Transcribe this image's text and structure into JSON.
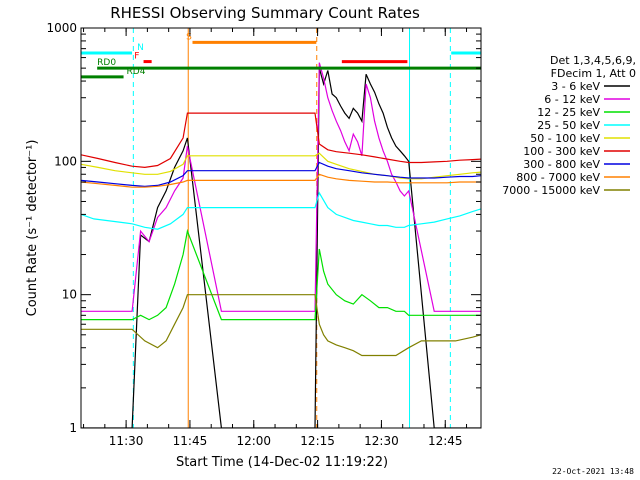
{
  "chart_data": {
    "type": "line",
    "title": "RHESSI Observing Summary Count Rates",
    "xlabel": "Start Time (14-Dec-02 11:19:22)",
    "ylabel": "Count Rate (s⁻¹ detector⁻¹)",
    "y_scale": "log",
    "ylim": [
      1,
      1000
    ],
    "xlim_minutes": [
      0,
      94
    ],
    "x_ticks": [
      {
        "label": "11:30",
        "minute": 10.6
      },
      {
        "label": "11:45",
        "minute": 25.6
      },
      {
        "label": "12:00",
        "minute": 40.6
      },
      {
        "label": "12:15",
        "minute": 55.6
      },
      {
        "label": "12:30",
        "minute": 70.6
      },
      {
        "label": "12:45",
        "minute": 85.6
      }
    ],
    "y_ticks": [
      {
        "label": "1",
        "value": 1
      },
      {
        "label": "10",
        "value": 10
      },
      {
        "label": "100",
        "value": 100
      },
      {
        "label": "1000",
        "value": 1000
      }
    ],
    "legend_header": [
      "Det 1,3,4,5,6,9,",
      "FDecim 1, Att 0"
    ],
    "legend_position": "right",
    "grid": false,
    "series": [
      {
        "name": "3 - 6 keV",
        "color": "#000000",
        "x": [
          0,
          12,
          14,
          16,
          18,
          20,
          22,
          24,
          25,
          33,
          55,
          56,
          57,
          58,
          59,
          60,
          61,
          62,
          63,
          64,
          65,
          66,
          67,
          68,
          69,
          70,
          71,
          72,
          73,
          74,
          75,
          76,
          77,
          83,
          90,
          94
        ],
        "y": [
          1,
          1,
          28,
          25,
          45,
          60,
          90,
          120,
          150,
          1,
          1,
          500,
          380,
          480,
          320,
          300,
          260,
          230,
          210,
          250,
          230,
          200,
          450,
          380,
          330,
          270,
          230,
          180,
          150,
          130,
          120,
          110,
          100,
          1,
          1,
          1
        ]
      },
      {
        "name": "6 - 12 keV",
        "color": "#e000e0",
        "x": [
          0,
          12,
          14,
          16,
          18,
          20,
          22,
          24,
          25,
          33,
          55,
          56,
          57,
          58,
          59,
          60,
          61,
          62,
          63,
          64,
          65,
          66,
          67,
          68,
          69,
          70,
          71,
          72,
          73,
          74,
          75,
          76,
          77,
          83,
          90,
          94
        ],
        "y": [
          7.5,
          7.5,
          30,
          25,
          38,
          45,
          60,
          75,
          130,
          7.5,
          7.5,
          550,
          420,
          300,
          240,
          200,
          170,
          140,
          120,
          160,
          140,
          110,
          380,
          300,
          200,
          150,
          120,
          100,
          80,
          70,
          60,
          55,
          60,
          7.5,
          7.5,
          7.5
        ]
      },
      {
        "name": "12 - 25 keV",
        "color": "#00e000",
        "x": [
          0,
          12,
          14,
          16,
          18,
          20,
          22,
          24,
          25,
          33,
          55,
          56,
          57,
          58,
          60,
          62,
          64,
          66,
          68,
          70,
          72,
          74,
          76,
          77,
          83,
          90,
          94
        ],
        "y": [
          6.5,
          6.5,
          7,
          6.5,
          7,
          8,
          12,
          20,
          30,
          6.5,
          6.5,
          22,
          15,
          12,
          10,
          9,
          8.5,
          10,
          9,
          8,
          8,
          7.5,
          7.5,
          7,
          7,
          7,
          7
        ]
      },
      {
        "name": "25 - 50 keV",
        "color": "#00ffff",
        "x": [
          0,
          3,
          6,
          9,
          12,
          15,
          18,
          21,
          24,
          25,
          33,
          55,
          56,
          58,
          60,
          62,
          64,
          66,
          68,
          70,
          72,
          74,
          76,
          77,
          80,
          83,
          86,
          89,
          92,
          94
        ],
        "y": [
          40,
          37,
          36,
          35,
          34,
          32,
          31,
          34,
          40,
          45,
          45,
          45,
          58,
          45,
          40,
          38,
          36,
          35,
          34,
          33,
          33,
          32,
          32,
          33,
          34,
          35,
          37,
          39,
          42,
          44
        ]
      },
      {
        "name": "50 - 100 keV",
        "color": "#e0e000",
        "x": [
          0,
          4,
          8,
          12,
          15,
          18,
          21,
          24,
          25,
          33,
          55,
          56,
          58,
          60,
          63,
          66,
          69,
          72,
          75,
          77,
          80,
          83,
          86,
          89,
          92,
          94
        ],
        "y": [
          95,
          90,
          85,
          82,
          80,
          80,
          84,
          95,
          110,
          110,
          110,
          115,
          100,
          95,
          88,
          84,
          80,
          78,
          75,
          74,
          74,
          76,
          78,
          80,
          82,
          83
        ]
      },
      {
        "name": "100 - 300 keV",
        "color": "#e00000",
        "x": [
          0,
          4,
          8,
          12,
          15,
          18,
          21,
          24,
          25,
          33,
          55,
          56,
          58,
          60,
          63,
          66,
          69,
          72,
          75,
          77,
          80,
          83,
          86,
          89,
          92,
          94
        ],
        "y": [
          112,
          105,
          98,
          92,
          90,
          93,
          105,
          150,
          230,
          230,
          230,
          135,
          122,
          118,
          115,
          112,
          108,
          104,
          100,
          98,
          98,
          99,
          100,
          102,
          103,
          104
        ]
      },
      {
        "name": "300 - 800 keV",
        "color": "#0000e0",
        "x": [
          0,
          4,
          8,
          12,
          15,
          18,
          21,
          24,
          25,
          33,
          55,
          56,
          58,
          60,
          63,
          66,
          69,
          72,
          75,
          77,
          80,
          83,
          86,
          89,
          92,
          94
        ],
        "y": [
          72,
          70,
          68,
          66,
          65,
          66,
          70,
          78,
          85,
          85,
          85,
          98,
          92,
          88,
          85,
          82,
          80,
          78,
          76,
          75,
          75,
          75,
          76,
          77,
          77,
          78
        ]
      },
      {
        "name": "800 - 7000 keV",
        "color": "#ff8000",
        "x": [
          0,
          4,
          8,
          12,
          15,
          18,
          21,
          24,
          25,
          33,
          55,
          56,
          58,
          60,
          63,
          66,
          69,
          72,
          75,
          77,
          80,
          83,
          86,
          89,
          92,
          94
        ],
        "y": [
          70,
          68,
          66,
          64,
          64,
          65,
          67,
          70,
          72,
          72,
          72,
          80,
          76,
          74,
          72,
          71,
          70,
          70,
          69,
          69,
          69,
          69,
          69,
          70,
          70,
          70
        ]
      },
      {
        "name": "7000 - 15000 keV",
        "color": "#808000",
        "x": [
          0,
          12,
          15,
          18,
          20,
          22,
          24,
          25,
          33,
          55,
          56,
          57,
          58,
          60,
          62,
          64,
          66,
          70,
          74,
          77,
          80,
          84,
          88,
          92,
          94
        ],
        "y": [
          5.5,
          5.5,
          4.5,
          4,
          4.5,
          6,
          8,
          10,
          10,
          10,
          6,
          5,
          4.5,
          4.2,
          4,
          3.8,
          3.5,
          3.5,
          3.5,
          4,
          4.5,
          4.5,
          4.5,
          4.8,
          5
        ]
      }
    ],
    "annotations": {
      "bars": [
        {
          "label": "N",
          "color": "#00ffff",
          "y": 650,
          "x": [
            0,
            12
          ],
          "label_minute": 13.2
        },
        {
          "label": "",
          "color": "#00ffff",
          "y": 650,
          "x": [
            87,
            94
          ]
        },
        {
          "label": "F",
          "color": "#ff0000",
          "y": 560,
          "x": [
            14.7,
            16.6
          ],
          "label_minute": 12.5
        },
        {
          "label": "",
          "color": "#ff0000",
          "y": 560,
          "x": [
            61.3,
            76.7
          ]
        },
        {
          "label": "S",
          "color": "#ff8000",
          "y": 780,
          "x": [
            26.2,
            55.3
          ],
          "label_minute": 24.7
        },
        {
          "label": "RD0",
          "color": "#008000",
          "y": 500,
          "x": [
            3.8,
            94
          ],
          "label_minute": 3.8
        },
        {
          "label": "RD4",
          "color": "#008000",
          "y": 430,
          "x": [
            0,
            10
          ],
          "label_minute": 10.7
        }
      ],
      "vertical_lines": [
        {
          "minute": 0,
          "color": "#00ffff",
          "style": "dashed"
        },
        {
          "minute": 12.3,
          "color": "#00ffff",
          "style": "dashed"
        },
        {
          "minute": 25.2,
          "color": "#ff8000",
          "style": "solid"
        },
        {
          "minute": 55.4,
          "color": "#ff8000",
          "style": "dashed"
        },
        {
          "minute": 77.2,
          "color": "#00ffff",
          "style": "solid"
        },
        {
          "minute": 86.8,
          "color": "#00ffff",
          "style": "dashed"
        }
      ]
    }
  },
  "footer": {
    "timestamp": "22-Oct-2021 13:48"
  }
}
